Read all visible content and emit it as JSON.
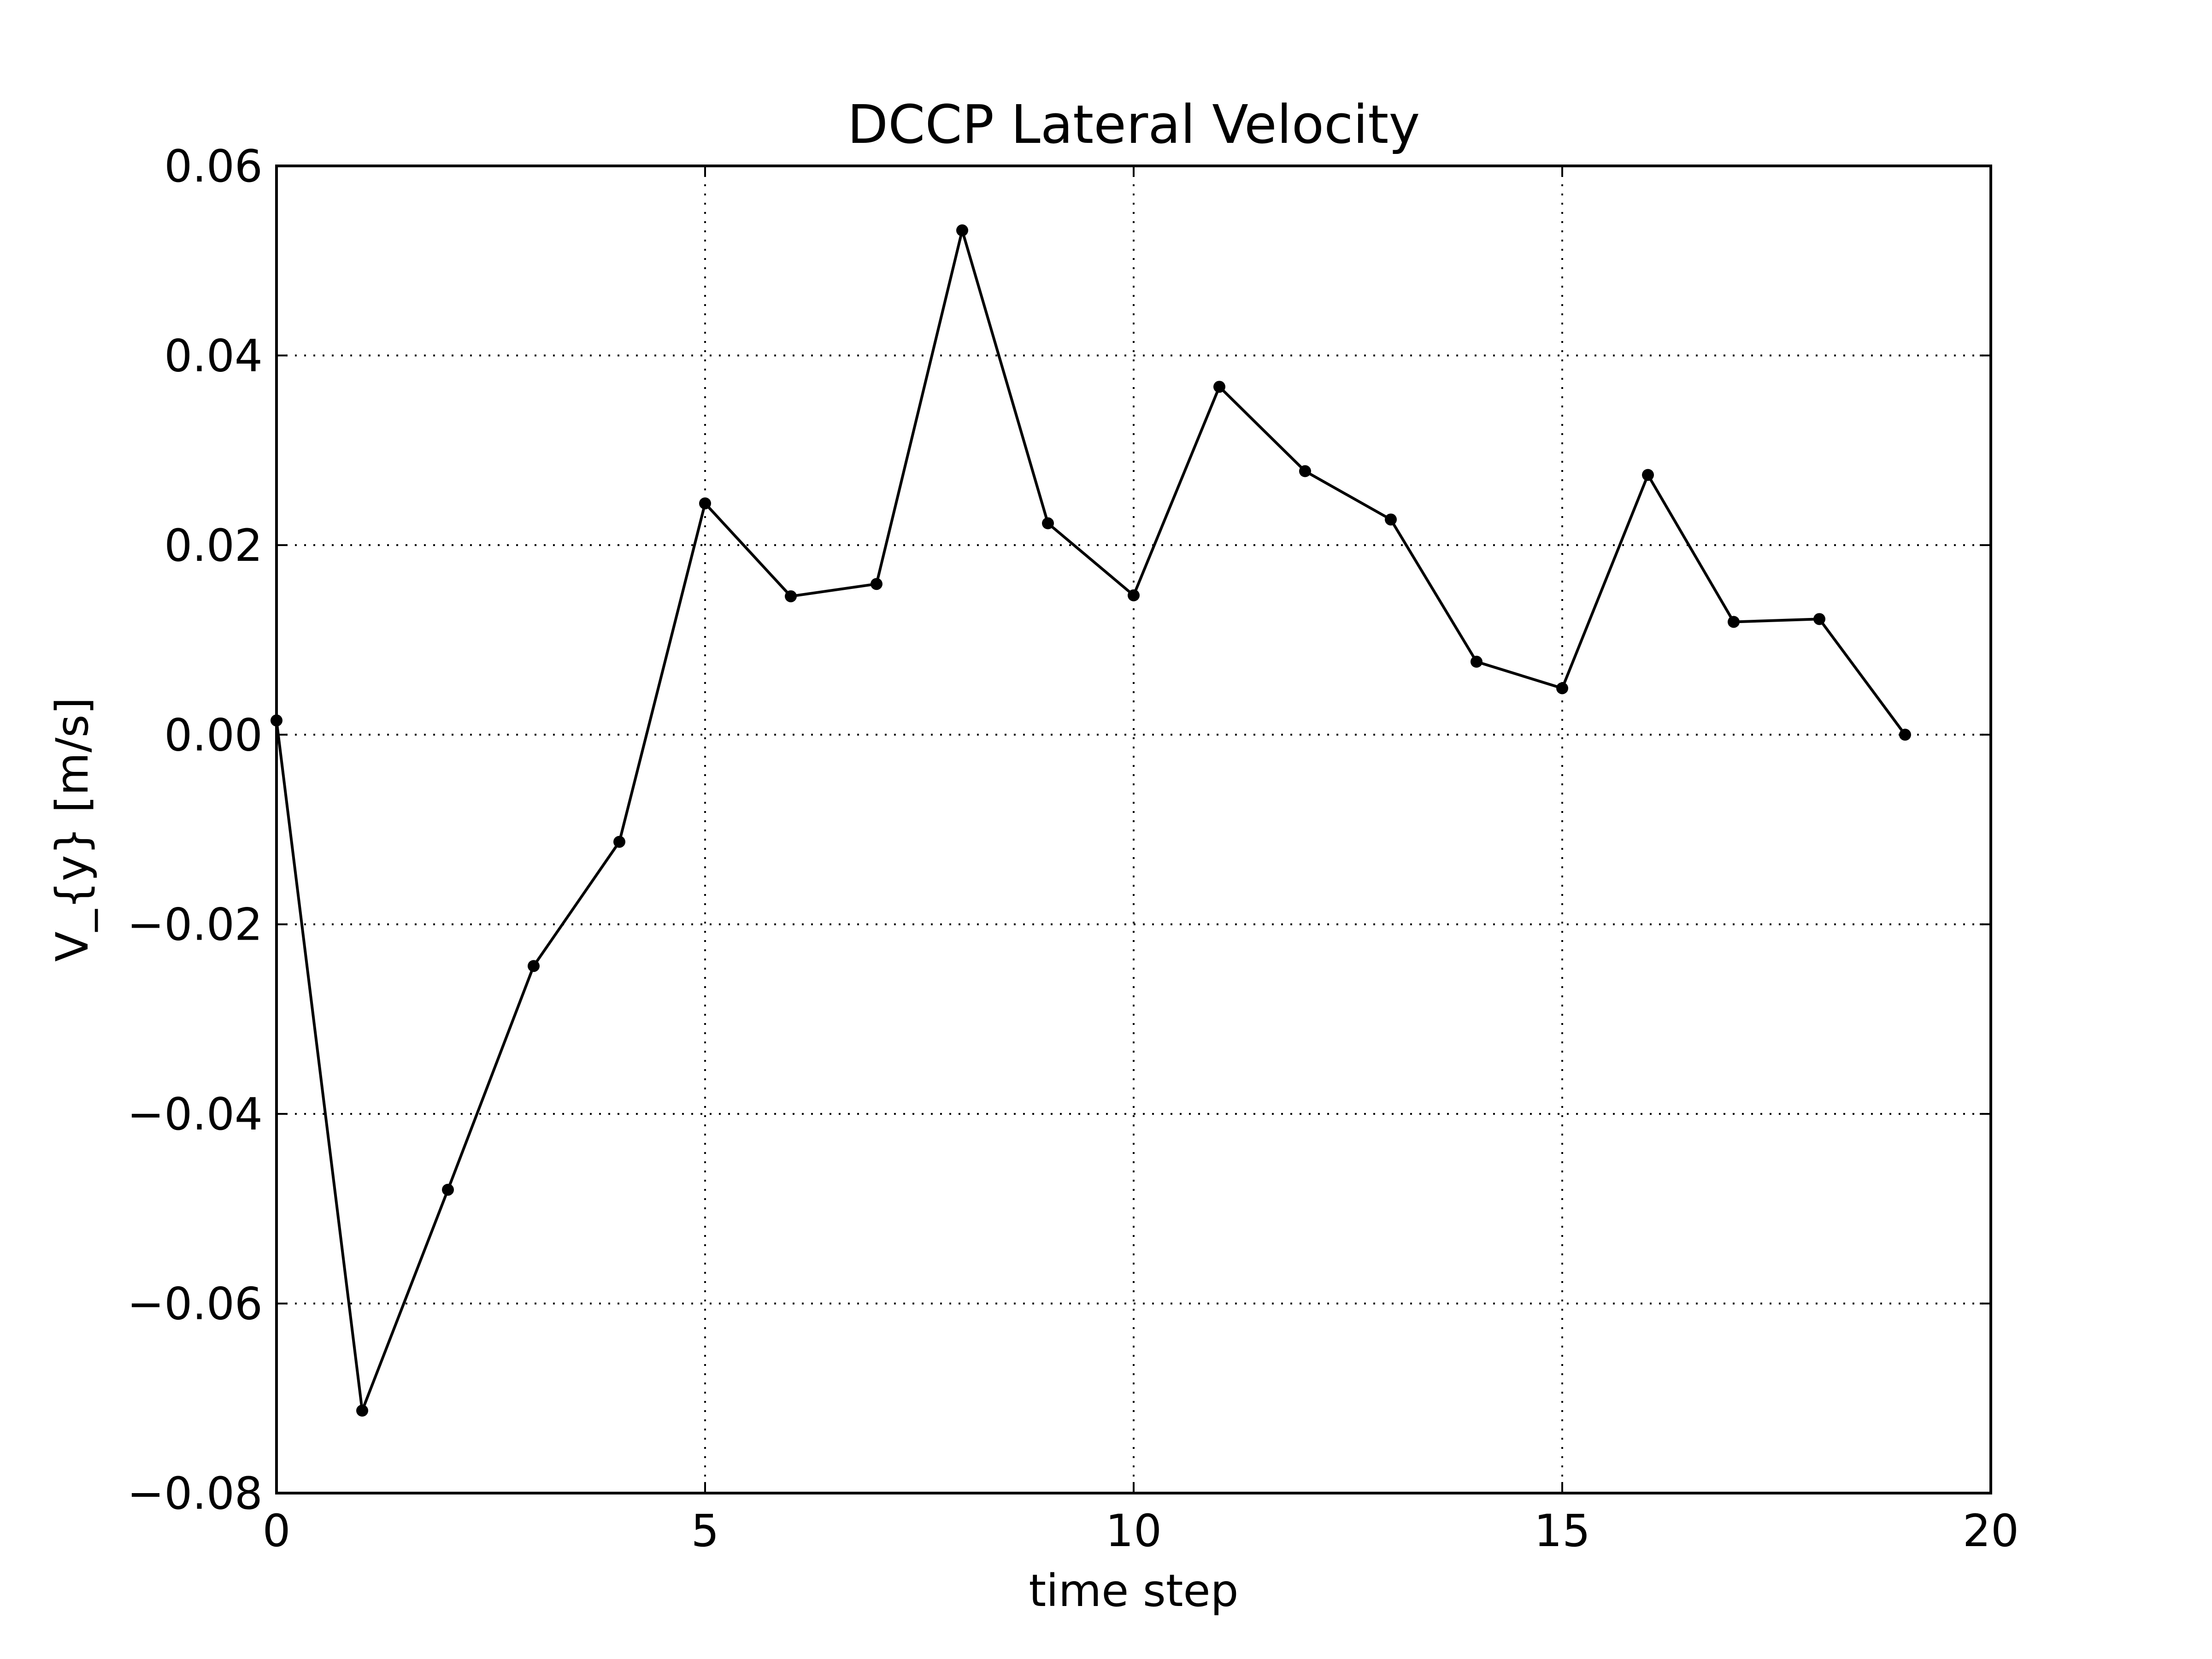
{
  "chart_data": {
    "type": "line",
    "title": "DCCP Lateral Velocity",
    "xlabel": "time step",
    "ylabel": "V_{y} [m/s]",
    "xlim": [
      0,
      20
    ],
    "ylim": [
      -0.08,
      0.06
    ],
    "grid": true,
    "x_ticks": [
      0,
      5,
      10,
      15,
      20
    ],
    "x_tick_labels": [
      "0",
      "5",
      "10",
      "15",
      "20"
    ],
    "y_ticks": [
      -0.08,
      -0.06,
      -0.04,
      -0.02,
      0.0,
      0.02,
      0.04,
      0.06
    ],
    "y_tick_labels": [
      "−0.08",
      "−0.06",
      "−0.04",
      "−0.02",
      "0.00",
      "0.02",
      "0.04",
      "0.06"
    ],
    "series": [
      {
        "color": "#000000",
        "marker": "dot",
        "x": [
          0,
          1,
          2,
          3,
          4,
          5,
          6,
          7,
          8,
          9,
          10,
          11,
          12,
          13,
          14,
          15,
          16,
          17,
          18,
          19
        ],
        "y": [
          0.0015,
          -0.0713,
          -0.048,
          -0.0244,
          -0.0113,
          0.0244,
          0.0146,
          0.0159,
          0.0532,
          0.0223,
          0.0147,
          0.0367,
          0.0278,
          0.0227,
          0.0077,
          0.0049,
          0.0274,
          0.0119,
          0.0122,
          0.0
        ]
      }
    ]
  }
}
